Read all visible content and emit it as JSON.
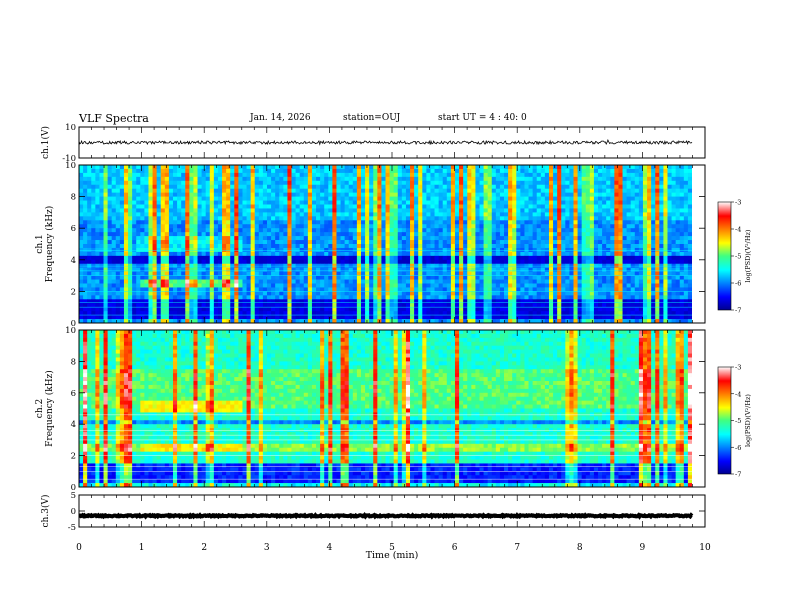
{
  "header": {
    "title": "VLF Spectra",
    "date": "Jan. 14, 2026",
    "station": "station=OUJ",
    "start_ut": "start UT =  4 : 40: 0"
  },
  "chart_data": {
    "type": "heatmap",
    "title": "VLF Spectra",
    "xlabel": "Time (min)",
    "xlim": [
      0,
      10
    ],
    "xticks": [
      "0",
      "1",
      "2",
      "3",
      "4",
      "5",
      "6",
      "7",
      "8",
      "9",
      "10"
    ],
    "panels": [
      {
        "name": "ch1-waveform",
        "kind": "line",
        "ylabel": "ch.1(V)",
        "ylim": [
          -10,
          10
        ],
        "yticks": [
          "10",
          "-10"
        ],
        "mean_value": 0,
        "noise_amplitude": 1
      },
      {
        "name": "ch1-spectrogram",
        "kind": "heatmap",
        "ylabel_1": "ch.1",
        "ylabel_2": "Frequency (kHz)",
        "ylim": [
          0,
          10
        ],
        "yticks": [
          "0",
          "2",
          "4",
          "6",
          "8",
          "10"
        ],
        "colorbar": {
          "label": "log(PSD)(V²/Hz)",
          "range": [
            -7,
            -3
          ],
          "ticks": [
            "-3",
            "-4",
            "-5",
            "-6",
            "-7"
          ]
        }
      },
      {
        "name": "ch2-spectrogram",
        "kind": "heatmap",
        "ylabel_1": "ch.2",
        "ylabel_2": "Frequency (kHz)",
        "ylim": [
          0,
          10
        ],
        "yticks": [
          "0",
          "2",
          "4",
          "6",
          "8",
          "10"
        ],
        "colorbar": {
          "label": "log(PSD)(V²/Hz)",
          "range": [
            -7,
            -3
          ],
          "ticks": [
            "-3",
            "-4",
            "-5",
            "-6",
            "-7"
          ]
        }
      },
      {
        "name": "ch3-waveform",
        "kind": "line",
        "ylabel": "ch.3(V)",
        "ylim": [
          -5,
          5
        ],
        "yticks": [
          "5",
          "0",
          "-5"
        ],
        "mean_value": -1.5,
        "noise_amplitude": 0.2
      }
    ]
  }
}
